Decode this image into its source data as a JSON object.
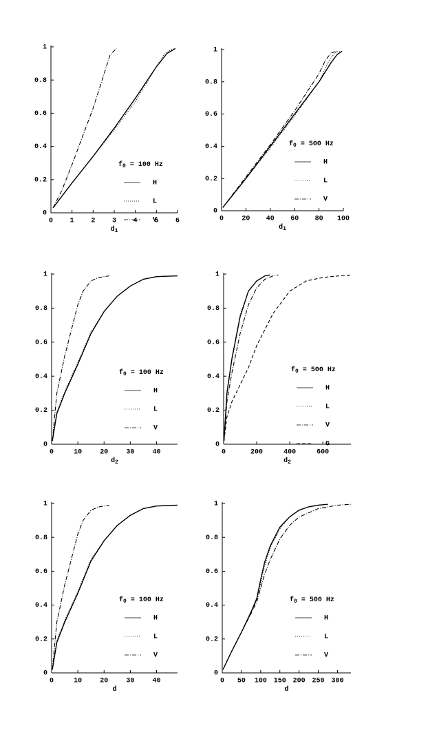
{
  "chart_data": [
    {
      "type": "line",
      "xlabel": {
        "base": "d",
        "sub": "1"
      },
      "legend_title": {
        "base": "f",
        "sub": "0",
        "rest": " = 100 Hz"
      },
      "xlim": [
        0,
        6
      ],
      "ylim": [
        0,
        1
      ],
      "xticks": [
        0,
        1,
        2,
        3,
        4,
        5,
        6
      ],
      "yticks": [
        0,
        0.2,
        0.4,
        0.6,
        0.8,
        1
      ],
      "series": [
        {
          "name": "H",
          "color": "#000",
          "style": "solid",
          "x": [
            0.1,
            1,
            2,
            3,
            4,
            5,
            5.5,
            5.9
          ],
          "values": [
            0.03,
            0.18,
            0.34,
            0.51,
            0.69,
            0.88,
            0.96,
            0.99
          ]
        },
        {
          "name": "L",
          "color": "#000",
          "style": "dotted",
          "x": [
            0.1,
            1,
            2,
            3,
            4,
            5,
            5.4,
            5.8
          ],
          "values": [
            0.03,
            0.18,
            0.34,
            0.5,
            0.67,
            0.88,
            0.96,
            0.99
          ]
        },
        {
          "name": "V",
          "color": "#000",
          "style": "dashdot",
          "x": [
            0.1,
            0.5,
            1,
            1.5,
            2,
            2.5,
            2.8,
            3.1
          ],
          "values": [
            0.03,
            0.13,
            0.29,
            0.46,
            0.63,
            0.83,
            0.95,
            0.99
          ]
        }
      ]
    },
    {
      "type": "line",
      "xlabel": {
        "base": "d",
        "sub": "1"
      },
      "legend_title": {
        "base": "f",
        "sub": "0",
        "rest": " = 500 Hz"
      },
      "xlim": [
        0,
        100
      ],
      "ylim": [
        0,
        1
      ],
      "xticks": [
        0,
        20,
        40,
        60,
        80,
        100
      ],
      "yticks": [
        0,
        0.2,
        0.4,
        0.6,
        0.8,
        1
      ],
      "series": [
        {
          "name": "H",
          "color": "#000",
          "style": "solid",
          "x": [
            1,
            20,
            40,
            60,
            80,
            90,
            95,
            99
          ],
          "values": [
            0.02,
            0.2,
            0.4,
            0.6,
            0.8,
            0.92,
            0.97,
            0.99
          ]
        },
        {
          "name": "L",
          "color": "#000",
          "style": "dotted",
          "x": [
            1,
            20,
            40,
            60,
            80,
            88,
            93,
            97
          ],
          "values": [
            0.02,
            0.2,
            0.39,
            0.59,
            0.8,
            0.93,
            0.98,
            0.99
          ]
        },
        {
          "name": "V",
          "color": "#000",
          "style": "dashdot",
          "x": [
            1,
            20,
            40,
            60,
            80,
            85,
            90,
            95
          ],
          "values": [
            0.02,
            0.21,
            0.41,
            0.62,
            0.85,
            0.93,
            0.98,
            0.99
          ]
        }
      ]
    },
    {
      "type": "line",
      "xlabel": {
        "base": "d",
        "sub": "2"
      },
      "legend_title": {
        "base": "f",
        "sub": "0",
        "rest": " = 100 Hz"
      },
      "xlim": [
        0,
        48
      ],
      "ylim": [
        0,
        1
      ],
      "xticks": [
        0,
        10,
        20,
        30,
        40
      ],
      "yticks": [
        0,
        0.2,
        0.4,
        0.6,
        0.8,
        1
      ],
      "series": [
        {
          "name": "H",
          "color": "#000",
          "style": "solid",
          "x": [
            0.3,
            2,
            5,
            10,
            15,
            20,
            25,
            30,
            35,
            40,
            48
          ],
          "values": [
            0.02,
            0.18,
            0.3,
            0.47,
            0.65,
            0.78,
            0.87,
            0.93,
            0.97,
            0.985,
            0.99
          ]
        },
        {
          "name": "L",
          "color": "#000",
          "style": "dotted",
          "x": [
            0.3,
            2,
            5,
            10,
            15,
            20,
            25,
            30,
            35,
            40,
            48
          ],
          "values": [
            0.02,
            0.19,
            0.31,
            0.48,
            0.66,
            0.78,
            0.87,
            0.93,
            0.97,
            0.985,
            0.99
          ]
        },
        {
          "name": "V",
          "color": "#000",
          "style": "dashdot",
          "x": [
            0.3,
            2,
            5,
            8,
            10,
            12,
            15,
            18,
            22
          ],
          "values": [
            0.02,
            0.3,
            0.52,
            0.7,
            0.82,
            0.9,
            0.96,
            0.98,
            0.99
          ]
        }
      ]
    },
    {
      "type": "line",
      "xlabel": {
        "base": "d",
        "sub": "2"
      },
      "legend_title": {
        "base": "f",
        "sub": "0",
        "rest": " = 500 Hz"
      },
      "xlim": [
        0,
        770
      ],
      "ylim": [
        0,
        1
      ],
      "xticks": [
        0,
        200,
        400,
        600
      ],
      "yticks": [
        0,
        0.2,
        0.4,
        0.6,
        0.8,
        1
      ],
      "series": [
        {
          "name": "H",
          "color": "#000",
          "style": "solid",
          "x": [
            2,
            20,
            50,
            100,
            150,
            200,
            250,
            280
          ],
          "values": [
            0.02,
            0.3,
            0.5,
            0.75,
            0.9,
            0.96,
            0.99,
            0.995
          ]
        },
        {
          "name": "L",
          "color": "#000",
          "style": "dotted",
          "x": [
            2,
            20,
            50,
            100,
            150,
            200,
            250,
            280
          ],
          "values": [
            0.02,
            0.31,
            0.51,
            0.76,
            0.9,
            0.96,
            0.99,
            0.995
          ]
        },
        {
          "name": "V",
          "color": "#000",
          "style": "dashdot",
          "x": [
            2,
            20,
            50,
            100,
            150,
            200,
            250,
            300,
            330
          ],
          "values": [
            0.02,
            0.25,
            0.42,
            0.65,
            0.82,
            0.92,
            0.97,
            0.99,
            0.995
          ]
        },
        {
          "name": "G",
          "color": "#000",
          "style": "dashed",
          "x": [
            2,
            20,
            50,
            100,
            150,
            200,
            300,
            400,
            500,
            600,
            700,
            770
          ],
          "values": [
            0.02,
            0.16,
            0.25,
            0.35,
            0.45,
            0.58,
            0.77,
            0.9,
            0.96,
            0.98,
            0.99,
            0.995
          ]
        }
      ]
    },
    {
      "type": "line",
      "xlabel": {
        "base": "d"
      },
      "legend_title": {
        "base": "f",
        "sub": "0",
        "rest": " = 100 Hz"
      },
      "xlim": [
        0,
        48
      ],
      "ylim": [
        0,
        1
      ],
      "xticks": [
        0,
        10,
        20,
        30,
        40
      ],
      "yticks": [
        0,
        0.2,
        0.4,
        0.6,
        0.8,
        1
      ],
      "series": [
        {
          "name": "H",
          "color": "#000",
          "style": "solid",
          "x": [
            0.3,
            2,
            5,
            10,
            15,
            20,
            25,
            30,
            35,
            40,
            48
          ],
          "values": [
            0.02,
            0.18,
            0.3,
            0.47,
            0.66,
            0.78,
            0.87,
            0.93,
            0.97,
            0.985,
            0.99
          ]
        },
        {
          "name": "L",
          "color": "#000",
          "style": "dotted",
          "x": [
            0.3,
            2,
            5,
            10,
            15,
            20,
            25,
            30,
            35,
            40,
            48
          ],
          "values": [
            0.02,
            0.19,
            0.31,
            0.48,
            0.67,
            0.78,
            0.87,
            0.93,
            0.97,
            0.985,
            0.99
          ]
        },
        {
          "name": "V",
          "color": "#000",
          "style": "dashdot",
          "x": [
            0.3,
            2,
            5,
            8,
            10,
            12,
            15,
            18,
            22
          ],
          "values": [
            0.02,
            0.3,
            0.52,
            0.7,
            0.82,
            0.9,
            0.96,
            0.98,
            0.99
          ]
        }
      ]
    },
    {
      "type": "line",
      "xlabel": {
        "base": "d"
      },
      "legend_title": {
        "base": "f",
        "sub": "0",
        "rest": " = 500 Hz"
      },
      "xlim": [
        0,
        335
      ],
      "ylim": [
        0,
        1
      ],
      "xticks": [
        0,
        50,
        100,
        150,
        200,
        250,
        300
      ],
      "yticks": [
        0,
        0.2,
        0.4,
        0.6,
        0.8,
        1
      ],
      "series": [
        {
          "name": "H",
          "color": "#000",
          "style": "solid",
          "x": [
            2,
            25,
            50,
            75,
            90,
            100,
            110,
            125,
            150,
            175,
            200,
            225,
            250,
            275
          ],
          "values": [
            0.02,
            0.13,
            0.24,
            0.36,
            0.44,
            0.55,
            0.65,
            0.75,
            0.86,
            0.92,
            0.96,
            0.98,
            0.99,
            0.995
          ]
        },
        {
          "name": "L",
          "color": "#000",
          "style": "dotted",
          "x": [
            2,
            25,
            50,
            75,
            90,
            100,
            110,
            125,
            150,
            175,
            200,
            225,
            250,
            275
          ],
          "values": [
            0.02,
            0.13,
            0.24,
            0.36,
            0.43,
            0.53,
            0.63,
            0.74,
            0.85,
            0.92,
            0.96,
            0.98,
            0.99,
            0.995
          ]
        },
        {
          "name": "V",
          "color": "#000",
          "style": "dashdot",
          "x": [
            2,
            25,
            50,
            75,
            90,
            100,
            110,
            125,
            150,
            175,
            200,
            250,
            300,
            335
          ],
          "values": [
            0.02,
            0.13,
            0.24,
            0.35,
            0.42,
            0.5,
            0.58,
            0.67,
            0.79,
            0.87,
            0.92,
            0.97,
            0.99,
            0.995
          ]
        }
      ]
    }
  ]
}
